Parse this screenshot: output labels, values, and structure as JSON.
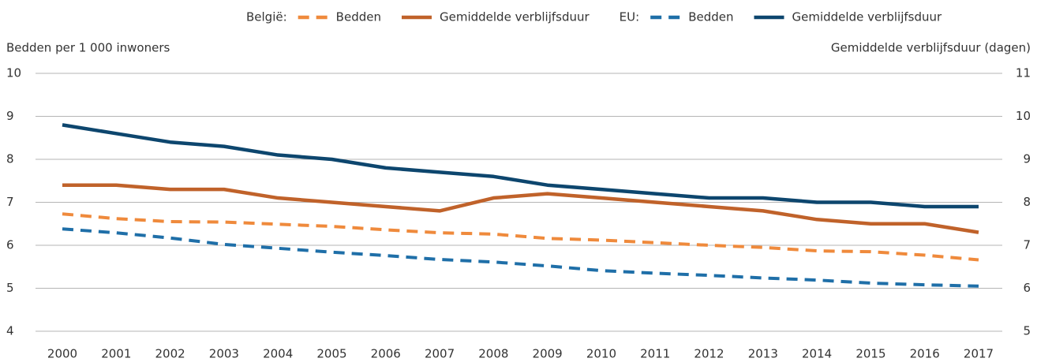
{
  "chart_data": {
    "type": "line",
    "x": [
      "2000",
      "2001",
      "2002",
      "2003",
      "2004",
      "2005",
      "2006",
      "2007",
      "2008",
      "2009",
      "2010",
      "2011",
      "2012",
      "2013",
      "2014",
      "2015",
      "2016",
      "2017"
    ],
    "legend_groups": [
      "België:",
      "EU:"
    ],
    "series": [
      {
        "name": "Bedden",
        "color": "#ef8a3c",
        "dashed": true,
        "axis": "y",
        "values": [
          6.73,
          6.62,
          6.55,
          6.54,
          6.49,
          6.44,
          6.36,
          6.29,
          6.26,
          6.16,
          6.12,
          6.06,
          6.0,
          5.95,
          5.87,
          5.85,
          5.77,
          5.66
        ]
      },
      {
        "name": "Gemiddelde verblijfsduur",
        "color": "#c0622a",
        "dashed": false,
        "axis": "y2",
        "values": [
          8.4,
          8.4,
          8.3,
          8.3,
          8.1,
          8.0,
          7.9,
          7.8,
          8.1,
          8.2,
          8.1,
          8.0,
          7.9,
          7.8,
          7.6,
          7.5,
          7.5,
          7.3
        ]
      },
      {
        "name": "Bedden",
        "color": "#1f6fa8",
        "dashed": true,
        "axis": "y",
        "values": [
          6.38,
          6.29,
          6.17,
          6.02,
          5.93,
          5.84,
          5.76,
          5.67,
          5.61,
          5.52,
          5.41,
          5.35,
          5.3,
          5.24,
          5.19,
          5.12,
          5.08,
          5.05
        ]
      },
      {
        "name": "Gemiddelde verblijfsduur",
        "color": "#0d466e",
        "dashed": false,
        "axis": "y2",
        "values": [
          9.8,
          9.6,
          9.4,
          9.3,
          9.1,
          9.0,
          8.8,
          8.7,
          8.6,
          8.4,
          8.3,
          8.2,
          8.1,
          8.1,
          8.0,
          8.0,
          7.9,
          7.9
        ]
      }
    ],
    "y_label": "Bedden per 1 000 inwoners",
    "y2_label": "Gemiddelde verblijfsduur (dagen)",
    "ylim": [
      4,
      10
    ],
    "yticks": [
      4,
      5,
      6,
      7,
      8,
      9,
      10
    ],
    "y2lim": [
      5,
      11
    ],
    "y2ticks": [
      5,
      6,
      7,
      8,
      9,
      10,
      11
    ],
    "grid": true
  }
}
